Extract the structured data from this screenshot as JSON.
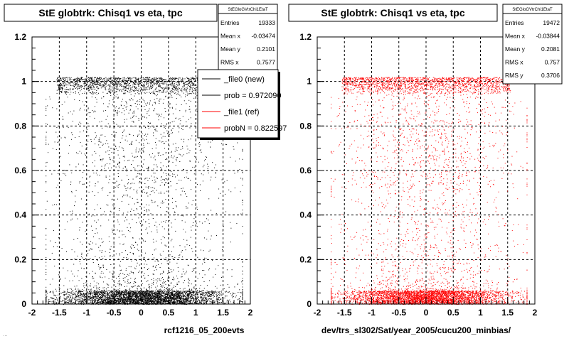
{
  "footer": "...",
  "chart_data": [
    {
      "type": "scatter",
      "title": "StE globtrk: Chisq1 vs eta, tpc",
      "xlabel": "rcf1216_05_200evts",
      "ylabel": "",
      "xlim": [
        -2,
        2
      ],
      "ylim": [
        0,
        1.2
      ],
      "xticks": [
        "-2",
        "-1.5",
        "-1",
        "-0.5",
        "0",
        "0.5",
        "1",
        "1.5",
        "2"
      ],
      "yticks": [
        "0",
        "0.2",
        "0.4",
        "0.6",
        "0.8",
        "1",
        "1.2"
      ],
      "grid": true,
      "color": "#000000",
      "stats": {
        "title": "StEGloGVtrChi1EtaT",
        "rows": [
          {
            "label": "Entries",
            "value": "19333"
          },
          {
            "label": "Mean x",
            "value": "-0.03474"
          },
          {
            "label": "Mean y",
            "value": "0.2101"
          },
          {
            "label": "RMS x",
            "value": "0.7577"
          }
        ]
      },
      "legend": [
        {
          "label": "_file0 (new)",
          "color": "#000000"
        },
        {
          "label": "prob = 0.972090",
          "color": "#000000"
        },
        {
          "label": "_file1 (ref)",
          "color": "#ff0000"
        },
        {
          "label": "probN = 0.822597",
          "color": "#ff0000"
        }
      ],
      "bands": [
        {
          "y_range": [
            0.0,
            0.06
          ],
          "x_range": [
            -1.75,
            1.85
          ],
          "density": "very high"
        },
        {
          "y_range": [
            0.94,
            1.02
          ],
          "x_range": [
            -1.55,
            1.55
          ],
          "density": "high"
        },
        {
          "y_range": [
            0.06,
            0.94
          ],
          "x_range": [
            -1.75,
            1.85
          ],
          "density": "low"
        }
      ]
    },
    {
      "type": "scatter",
      "title": "StE globtrk: Chisq1 vs eta, tpc",
      "xlabel": "dev/trs_sl302/Sat/year_2005/cucu200_minbias/",
      "ylabel": "",
      "xlim": [
        -2,
        2
      ],
      "ylim": [
        0,
        1.2
      ],
      "xticks": [
        "-2",
        "-1.5",
        "-1",
        "-0.5",
        "0",
        "0.5",
        "1",
        "1.5",
        "2"
      ],
      "yticks": [
        "0",
        "0.2",
        "0.4",
        "0.6",
        "0.8",
        "1",
        "1.2"
      ],
      "grid": true,
      "color": "#ff0000",
      "stats": {
        "title": "StEGloGVtrChi1EtaT",
        "rows": [
          {
            "label": "Entries",
            "value": "19472"
          },
          {
            "label": "Mean x",
            "value": "-0.03844"
          },
          {
            "label": "Mean y",
            "value": "0.2081"
          },
          {
            "label": "RMS x",
            "value": "0.757"
          },
          {
            "label": "RMS y",
            "value": "0.3706"
          }
        ]
      },
      "bands": [
        {
          "y_range": [
            0.0,
            0.06
          ],
          "x_range": [
            -1.75,
            1.85
          ],
          "density": "very high"
        },
        {
          "y_range": [
            0.94,
            1.02
          ],
          "x_range": [
            -1.55,
            1.55
          ],
          "density": "high"
        },
        {
          "y_range": [
            0.06,
            0.94
          ],
          "x_range": [
            -1.75,
            1.85
          ],
          "density": "low"
        }
      ]
    }
  ]
}
